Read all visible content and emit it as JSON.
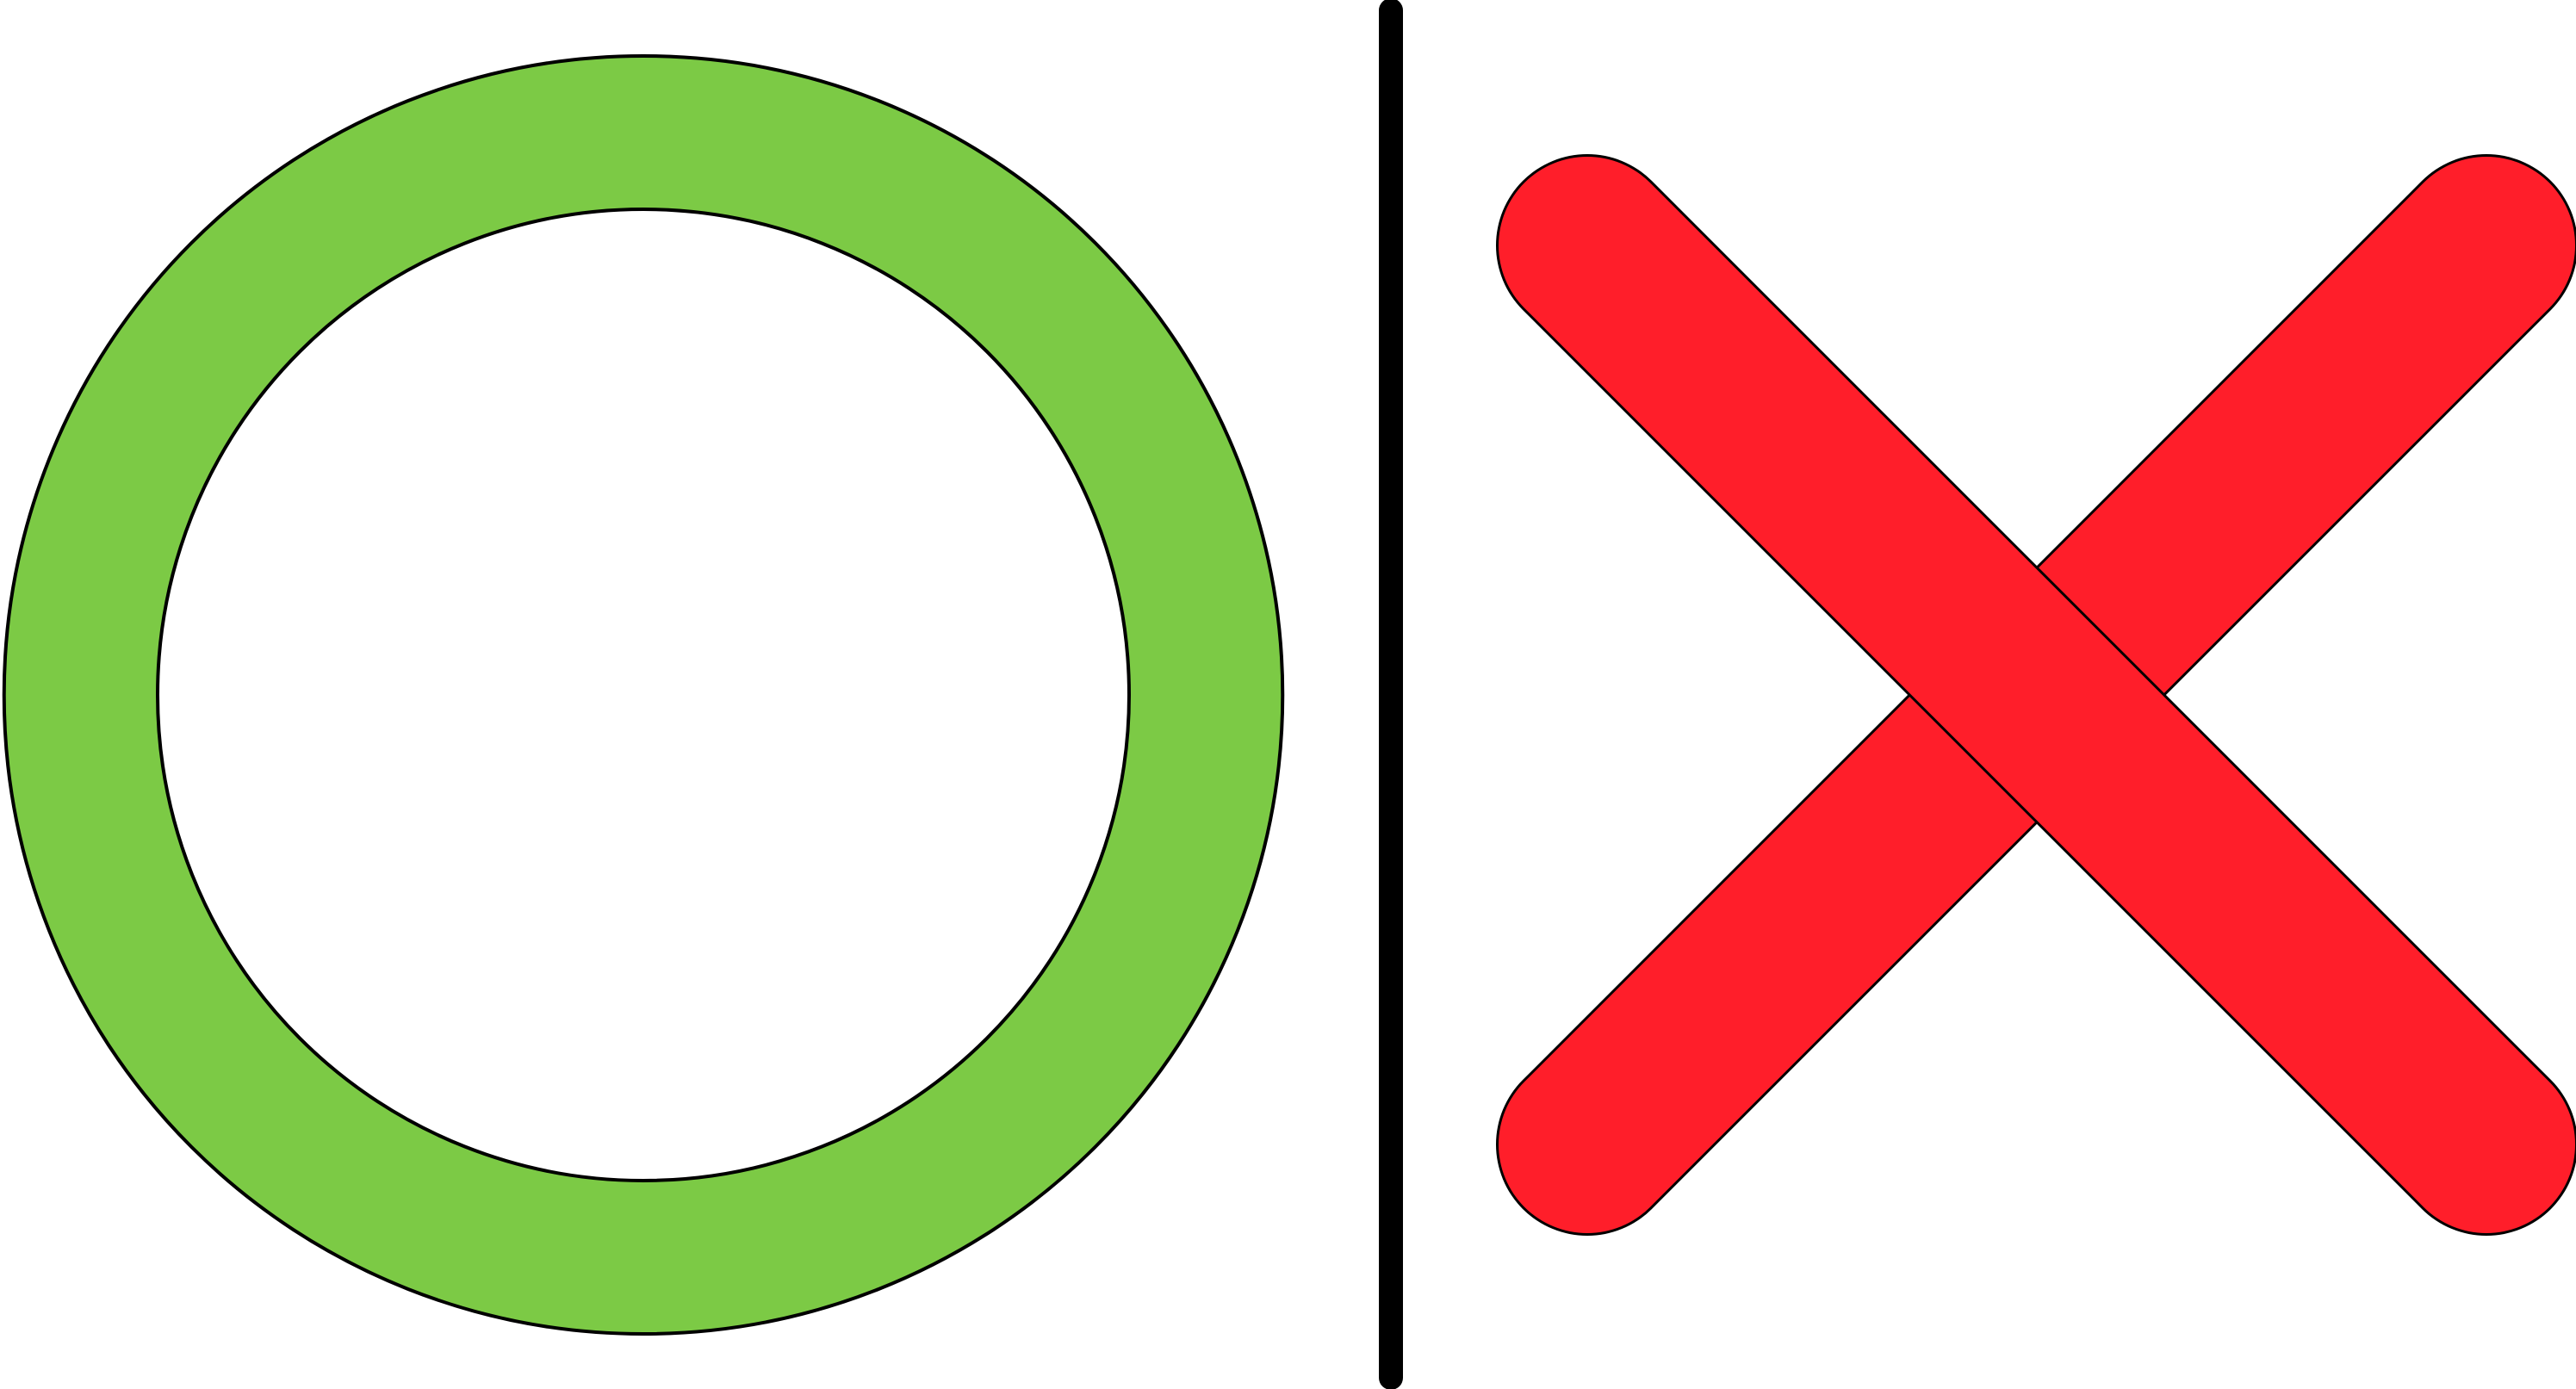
{
  "symbols": {
    "correct": {
      "icon": "circle-icon",
      "fill_color": "#7CCA45",
      "outline_color": "#000000"
    },
    "divider": {
      "icon": "vertical-divider",
      "color": "#000000"
    },
    "wrong": {
      "icon": "cross-icon",
      "fill_color": "#FF1E2A",
      "outline_color": "#000000"
    }
  },
  "background_color": "#FFFFFF"
}
